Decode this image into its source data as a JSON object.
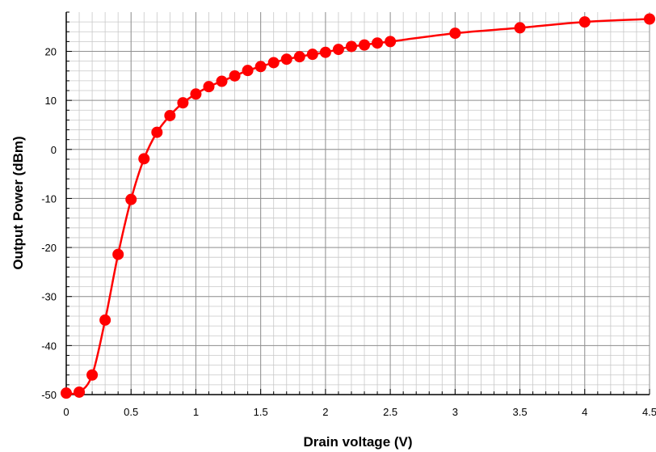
{
  "chart_data": {
    "type": "line",
    "title": "",
    "xlabel": "Drain voltage (V)",
    "ylabel": "Output Power (dBm)",
    "xlim": [
      0,
      4.5
    ],
    "ylim": [
      -50,
      28
    ],
    "x_ticks": [
      0,
      0.5,
      1,
      1.5,
      2,
      2.5,
      3,
      3.5,
      4,
      4.5
    ],
    "x_tick_labels": [
      "0",
      "0.5",
      "1",
      "1.5",
      "2",
      "2.5",
      "3",
      "3.5",
      "4",
      "4.5"
    ],
    "y_ticks": [
      -50,
      -40,
      -30,
      -20,
      -10,
      0,
      10,
      20
    ],
    "y_tick_labels": [
      "-50",
      "-40",
      "-30",
      "-20",
      "-10",
      "0",
      "10",
      "20"
    ],
    "grid": true,
    "marker": "circle",
    "color": "#ff0000",
    "series": [
      {
        "x": [
          0,
          0.1,
          0.2,
          0.3,
          0.4,
          0.5,
          0.6,
          0.7,
          0.8,
          0.9,
          1.0,
          1.1,
          1.2,
          1.3,
          1.4,
          1.5,
          1.6,
          1.7,
          1.8,
          1.9,
          2.0,
          2.1,
          2.2,
          2.3,
          2.4,
          2.5,
          3.0,
          3.5,
          4.0,
          4.5
        ],
        "y": [
          -49.7,
          -49.5,
          -46,
          -34.8,
          -21.4,
          -10.2,
          -1.9,
          3.5,
          6.9,
          9.5,
          11.3,
          12.8,
          13.9,
          15.0,
          16.1,
          16.9,
          17.7,
          18.4,
          18.9,
          19.4,
          19.8,
          20.4,
          21.0,
          21.3,
          21.7,
          22.0,
          23.7,
          24.8,
          26.0,
          26.6
        ]
      }
    ]
  }
}
